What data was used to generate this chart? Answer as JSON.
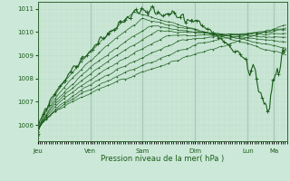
{
  "title": "",
  "xlabel": "Pression niveau de la mer( hPa )",
  "ylabel": "",
  "ylim": [
    1005.3,
    1011.3
  ],
  "yticks": [
    1006,
    1007,
    1008,
    1009,
    1010,
    1011
  ],
  "background_color": "#cce8d8",
  "grid_major_color": "#aaccbb",
  "grid_minor_color": "#bbddc8",
  "line_color": "#1a5c1a",
  "day_labels": [
    "Jeu",
    "Ven",
    "Sam",
    "Dim",
    "Lun",
    "Ma"
  ],
  "day_positions": [
    0,
    48,
    96,
    144,
    192,
    216
  ],
  "num_steps": 228,
  "series_params": [
    [
      1005.55,
      88,
      1010.85,
      1009.0
    ],
    [
      1005.57,
      95,
      1010.55,
      1009.3
    ],
    [
      1005.59,
      102,
      1010.25,
      1009.55
    ],
    [
      1005.61,
      110,
      1010.05,
      1009.75
    ],
    [
      1005.63,
      120,
      1009.85,
      1009.95
    ],
    [
      1005.66,
      132,
      1009.65,
      1010.1
    ],
    [
      1005.7,
      148,
      1009.5,
      1010.2
    ],
    [
      1005.75,
      165,
      1009.35,
      1010.3
    ]
  ],
  "main_series_noise": 0.18,
  "ensemble_noise": 0.05
}
